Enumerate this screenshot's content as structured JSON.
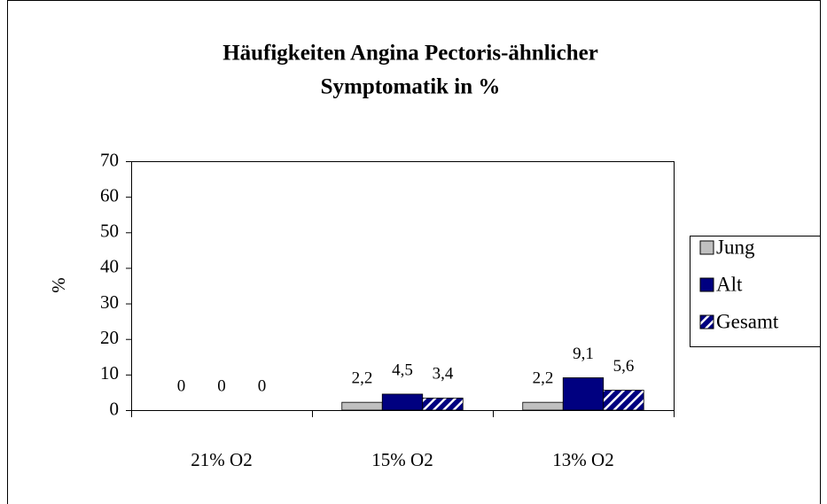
{
  "chart_data": {
    "type": "bar",
    "title": [
      "Häufigkeiten Angina Pectoris-ähnlicher",
      "Symptomatik in %"
    ],
    "y_label": "%",
    "categories": [
      "21% O2",
      "15% O2",
      "13% O2"
    ],
    "series": [
      {
        "name": "Jung",
        "color": "#c0c0c0",
        "values": [
          0,
          2.2,
          2.2
        ],
        "value_labels": [
          "0",
          "2,2",
          "2,2"
        ]
      },
      {
        "name": "Alt",
        "color": "#000080",
        "values": [
          0,
          4.5,
          9.1
        ],
        "value_labels": [
          "0",
          "4,5",
          "9,1"
        ]
      },
      {
        "name": "Gesamt",
        "color": "#000080",
        "pattern": "hatch",
        "values": [
          0,
          3.4,
          5.6
        ],
        "value_labels": [
          "0",
          "3,4",
          "5,6"
        ]
      }
    ],
    "ylim": [
      0,
      70
    ],
    "yticks": [
      0,
      10,
      20,
      30,
      40,
      50,
      60,
      70
    ],
    "grid": false,
    "legend": "right"
  }
}
